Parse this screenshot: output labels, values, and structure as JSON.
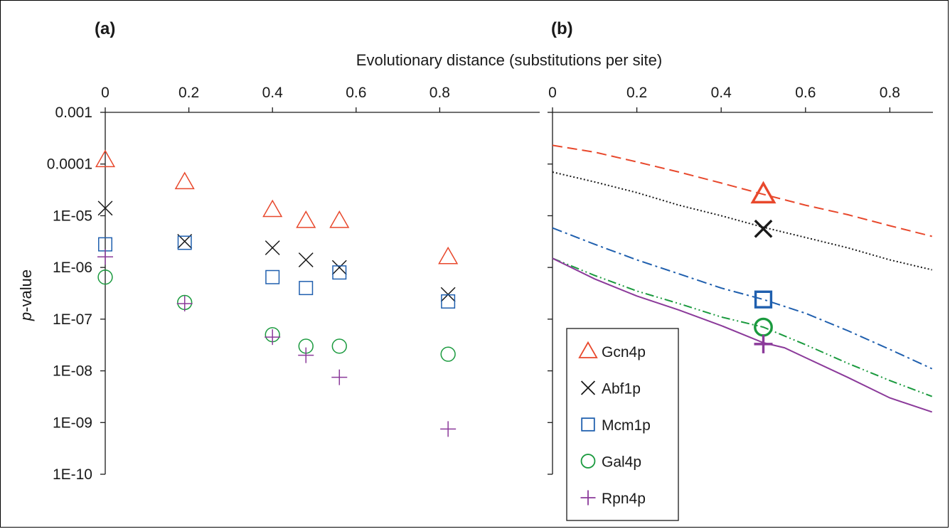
{
  "chart_data": {
    "type": "scatter",
    "x_axis_title": "Evolutionary distance (substitutions per site)",
    "y_axis_title": "p-value",
    "y_scale": "log",
    "x_ticks": [
      "0",
      "0.2",
      "0.4",
      "0.6",
      "0.8"
    ],
    "y_ticks": [
      "0.001",
      "0.0001",
      "1E-05",
      "1E-06",
      "1E-07",
      "1E-08",
      "1E-09",
      "1E-10"
    ],
    "legend": [
      "Gcn4p",
      "Abf1p",
      "Mcm1p",
      "Gal4p",
      "Rpn4p"
    ],
    "colors": {
      "Gcn4p": "#e8482c",
      "Abf1p": "#1a1a1a",
      "Mcm1p": "#1f5fae",
      "Gal4p": "#1a9a3e",
      "Rpn4p": "#8b3a9a"
    },
    "panels": [
      {
        "label": "(a)",
        "type": "scatter",
        "xlim": [
          0,
          0.9
        ],
        "ylim": [
          1e-10,
          0.001
        ],
        "series": [
          {
            "name": "Gcn4p",
            "marker": "triangle",
            "x": [
              0,
              0.19,
              0.4,
              0.48,
              0.56,
              0.82
            ],
            "y": [
              0.00012,
              4.5e-05,
              1.3e-05,
              8e-06,
              8e-06,
              1.6e-06
            ]
          },
          {
            "name": "Abf1p",
            "marker": "x",
            "x": [
              0,
              0.19,
              0.4,
              0.48,
              0.56,
              0.82
            ],
            "y": [
              1.4e-05,
              3.2e-06,
              2.4e-06,
              1.4e-06,
              1e-06,
              3e-07
            ]
          },
          {
            "name": "Mcm1p",
            "marker": "square",
            "x": [
              0,
              0.19,
              0.4,
              0.48,
              0.56,
              0.82
            ],
            "y": [
              2.8e-06,
              3e-06,
              6.5e-07,
              4e-07,
              8e-07,
              2.2e-07
            ]
          },
          {
            "name": "Gal4p",
            "marker": "circle",
            "x": [
              0,
              0.19,
              0.4,
              0.48,
              0.56,
              0.82
            ],
            "y": [
              6.5e-07,
              2.1e-07,
              5e-08,
              3e-08,
              3e-08,
              2.1e-08
            ]
          },
          {
            "name": "Rpn4p",
            "marker": "plus",
            "x": [
              0,
              0.19,
              0.4,
              0.48,
              0.56,
              0.82
            ],
            "y": [
              1.6e-06,
              2e-07,
              4.5e-08,
              2e-08,
              7.5e-09,
              7.5e-10
            ]
          }
        ]
      },
      {
        "label": "(b)",
        "type": "line",
        "xlim": [
          0,
          0.9
        ],
        "ylim": [
          1e-10,
          0.001
        ],
        "legend_position": "bottom-left",
        "series": [
          {
            "name": "Gcn4p",
            "marker": "triangle",
            "linestyle": "dashed",
            "x": [
              0,
              0.1,
              0.2,
              0.3,
              0.4,
              0.5,
              0.6,
              0.7,
              0.8,
              0.9
            ],
            "y": [
              0.00023,
              0.00017,
              0.00011,
              7e-05,
              4.3e-05,
              2.6e-05,
              1.6e-05,
              1.05e-05,
              6.4e-06,
              4e-06
            ],
            "marker_x": 0.5,
            "marker_y": 2.6e-05
          },
          {
            "name": "Abf1p",
            "marker": "x",
            "linestyle": "dotted",
            "x": [
              0,
              0.1,
              0.2,
              0.3,
              0.4,
              0.5,
              0.6,
              0.7,
              0.8,
              0.9
            ],
            "y": [
              7e-05,
              4.5e-05,
              2.8e-05,
              1.6e-05,
              1e-05,
              6e-06,
              3.8e-06,
              2.4e-06,
              1.4e-06,
              9e-07
            ],
            "marker_x": 0.5,
            "marker_y": 5.6e-06
          },
          {
            "name": "Mcm1p",
            "marker": "square",
            "linestyle": "dash-dot",
            "x": [
              0,
              0.1,
              0.2,
              0.3,
              0.4,
              0.5,
              0.6,
              0.7,
              0.8,
              0.9
            ],
            "y": [
              5.8e-06,
              2.8e-06,
              1.4e-06,
              7.5e-07,
              4e-07,
              2.4e-07,
              1.3e-07,
              6e-08,
              2.6e-08,
              1.1e-08
            ],
            "marker_x": 0.5,
            "marker_y": 2.4e-07
          },
          {
            "name": "Gal4p",
            "marker": "circle",
            "linestyle": "dash-dot-dot",
            "x": [
              0,
              0.1,
              0.2,
              0.3,
              0.4,
              0.5,
              0.6,
              0.7,
              0.8,
              0.9
            ],
            "y": [
              1.5e-06,
              7e-07,
              3.5e-07,
              2e-07,
              1.1e-07,
              7e-08,
              3.2e-08,
              1.4e-08,
              6.5e-09,
              3.2e-09
            ],
            "marker_x": 0.5,
            "marker_y": 7e-08
          },
          {
            "name": "Rpn4p",
            "marker": "plus",
            "linestyle": "solid",
            "x": [
              0,
              0.1,
              0.2,
              0.3,
              0.4,
              0.5,
              0.55,
              0.6,
              0.7,
              0.8,
              0.9
            ],
            "y": [
              1.5e-06,
              6e-07,
              2.8e-07,
              1.5e-07,
              7.5e-08,
              3.5e-08,
              2.8e-08,
              1.8e-08,
              7.5e-09,
              3e-09,
              1.6e-09
            ],
            "marker_x": 0.5,
            "marker_y": 3.3e-08
          }
        ]
      }
    ]
  }
}
